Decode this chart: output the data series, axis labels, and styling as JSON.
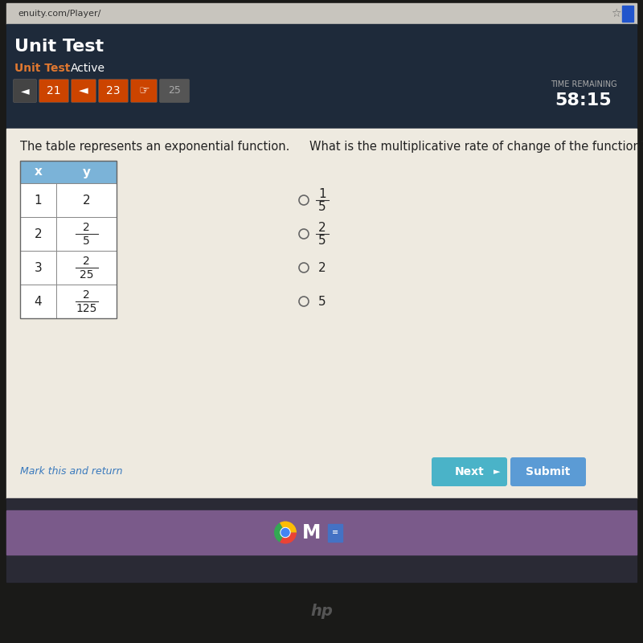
{
  "browser_bar_color": "#c8c5be",
  "browser_url": "enuity.com/Player/",
  "nav_dark_color": "#1e2a3a",
  "unit_test_title": "Unit Test",
  "unit_test_subtitle": "Unit Test",
  "active_label": "Active",
  "time_remaining_label": "TIME REMAINING",
  "time_remaining_value": "58:15",
  "content_bg": "#eeeae0",
  "question_text": "The table represents an exponential function.",
  "answer_question": "What is the multiplicative rate of change of the function?",
  "table_headers": [
    "x",
    "y"
  ],
  "table_header_bg": "#7bb3d8",
  "next_btn_color": "#4ab3c8",
  "submit_btn_color": "#5b9bd5",
  "mark_return_color": "#3a7abd",
  "mark_return_text": "Mark this and return",
  "taskbar_color": "#7a5a8a",
  "orange_btn_color": "#cc4400",
  "dark_bg": "#1a2030",
  "laptop_bg": "#1a1a18"
}
